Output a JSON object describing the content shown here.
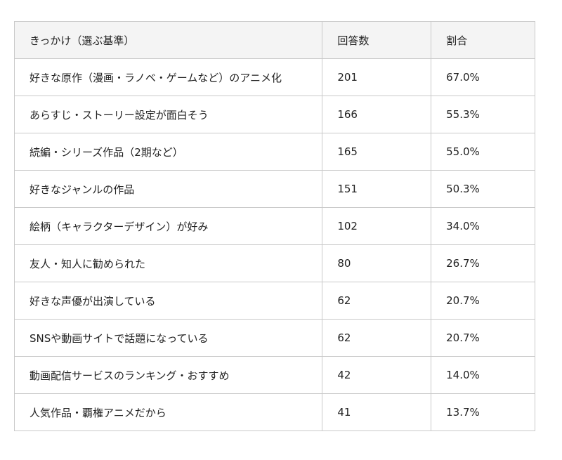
{
  "table": {
    "headers": [
      "きっかけ（選ぶ基準）",
      "回答数",
      "割合"
    ],
    "rows": [
      [
        "好きな原作（漫画・ラノベ・ゲームなど）のアニメ化",
        "201",
        "67.0%"
      ],
      [
        "あらすじ・ストーリー設定が面白そう",
        "166",
        "55.3%"
      ],
      [
        "続編・シリーズ作品（2期など）",
        "165",
        "55.0%"
      ],
      [
        "好きなジャンルの作品",
        "151",
        "50.3%"
      ],
      [
        "絵柄（キャラクターデザイン）が好み",
        "102",
        "34.0%"
      ],
      [
        "友人・知人に勧められた",
        "80",
        "26.7%"
      ],
      [
        "好きな声優が出演している",
        "62",
        "20.7%"
      ],
      [
        "SNSや動画サイトで話題になっている",
        "62",
        "20.7%"
      ],
      [
        "動画配信サービスのランキング・おすすめ",
        "42",
        "14.0%"
      ],
      [
        "人気作品・覇権アニメだから",
        "41",
        "13.7%"
      ]
    ]
  }
}
